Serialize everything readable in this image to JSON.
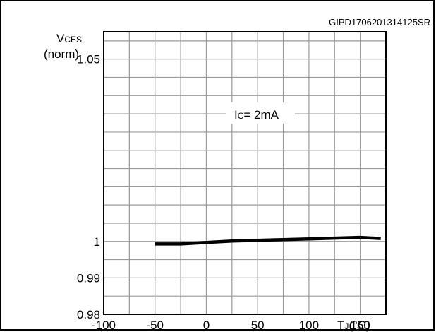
{
  "chart_data": {
    "type": "line",
    "title": "",
    "figure_id": "GIPD1706201314125SR",
    "annotation": {
      "pre": "I",
      "sub": "C",
      "post": "= 2mA"
    },
    "ylabel": {
      "v": "V",
      "sub": "CES",
      "unit": "(norm)"
    },
    "xlabel": {
      "t": "T",
      "sub": "J",
      "unit": "(°C)"
    },
    "xlim": [
      -100,
      175
    ],
    "ylim": [
      0.98,
      1.0575
    ],
    "x_ticks": [
      -100,
      -50,
      0,
      50,
      100,
      150
    ],
    "x_tick_labels": [
      "-100",
      "-50",
      "0",
      "50",
      "100",
      "150"
    ],
    "y_ticks": [
      0.98,
      0.99,
      1,
      1.05
    ],
    "y_tick_labels": [
      "0.98",
      "0.99",
      "1",
      "1.05"
    ],
    "grid": true,
    "series": [
      {
        "x": [
          -50,
          -25,
          0,
          25,
          50,
          75,
          100,
          125,
          150,
          170
        ],
        "y": [
          0.9993,
          0.9993,
          0.9997,
          1.0001,
          1.0003,
          1.0005,
          1.0007,
          1.0009,
          1.0011,
          1.0008
        ],
        "color": "#000000"
      }
    ]
  }
}
